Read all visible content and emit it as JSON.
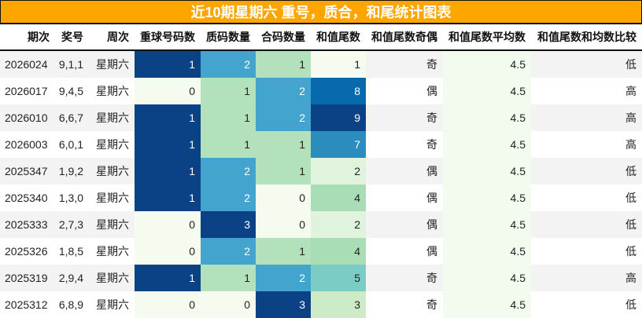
{
  "title": "近10期星期六 重号，质合，和尾统计图表",
  "columns": [
    "期次",
    "奖号",
    "周次",
    "重球号码数",
    "质码数量",
    "合码数量",
    "和值尾数",
    "和值尾数奇偶",
    "和值尾数平均数",
    "和值尾数和均数比较"
  ],
  "rows": [
    {
      "period": "2026024",
      "numbers": "9,1,1",
      "weekday": "星期六",
      "repeat": "1",
      "prime": "2",
      "composite": "1",
      "sum_tail": "1",
      "parity": "奇",
      "avg": "4.5",
      "compare": "低"
    },
    {
      "period": "2026017",
      "numbers": "9,4,5",
      "weekday": "星期六",
      "repeat": "0",
      "prime": "1",
      "composite": "2",
      "sum_tail": "8",
      "parity": "偶",
      "avg": "4.5",
      "compare": "高"
    },
    {
      "period": "2026010",
      "numbers": "6,6,7",
      "weekday": "星期六",
      "repeat": "1",
      "prime": "1",
      "composite": "2",
      "sum_tail": "9",
      "parity": "奇",
      "avg": "4.5",
      "compare": "高"
    },
    {
      "period": "2026003",
      "numbers": "6,0,1",
      "weekday": "星期六",
      "repeat": "1",
      "prime": "1",
      "composite": "1",
      "sum_tail": "7",
      "parity": "奇",
      "avg": "4.5",
      "compare": "高"
    },
    {
      "period": "2025347",
      "numbers": "1,9,2",
      "weekday": "星期六",
      "repeat": "1",
      "prime": "2",
      "composite": "1",
      "sum_tail": "2",
      "parity": "偶",
      "avg": "4.5",
      "compare": "低"
    },
    {
      "period": "2025340",
      "numbers": "1,3,0",
      "weekday": "星期六",
      "repeat": "1",
      "prime": "2",
      "composite": "0",
      "sum_tail": "4",
      "parity": "偶",
      "avg": "4.5",
      "compare": "低"
    },
    {
      "period": "2025333",
      "numbers": "2,7,3",
      "weekday": "星期六",
      "repeat": "0",
      "prime": "3",
      "composite": "0",
      "sum_tail": "2",
      "parity": "偶",
      "avg": "4.5",
      "compare": "低"
    },
    {
      "period": "2025326",
      "numbers": "1,8,5",
      "weekday": "星期六",
      "repeat": "0",
      "prime": "2",
      "composite": "1",
      "sum_tail": "4",
      "parity": "偶",
      "avg": "4.5",
      "compare": "低"
    },
    {
      "period": "2025319",
      "numbers": "2,9,4",
      "weekday": "星期六",
      "repeat": "1",
      "prime": "1",
      "composite": "2",
      "sum_tail": "5",
      "parity": "奇",
      "avg": "4.5",
      "compare": "高"
    },
    {
      "period": "2025312",
      "numbers": "6,8,9",
      "weekday": "星期六",
      "repeat": "0",
      "prime": "0",
      "composite": "3",
      "sum_tail": "3",
      "parity": "奇",
      "avg": "4.5",
      "compare": "低"
    }
  ],
  "colors": {
    "title_bg": "#FFA500",
    "heat_scale": {
      "0_of_1": "#f5fbef",
      "repeat_1": "#0b4285",
      "count_0": "#f5fbef",
      "count_1": "#b3e1bb",
      "count_2": "#43a5cd",
      "count_3": "#0b4285",
      "tail_1": "#f5fbef",
      "tail_2": "#e0f3dc",
      "tail_3": "#cdebc6",
      "tail_4": "#a8ddb5",
      "tail_5": "#7accc4",
      "tail_7": "#2b8cbe",
      "tail_8": "#0869ac",
      "tail_9": "#0b4285"
    }
  }
}
